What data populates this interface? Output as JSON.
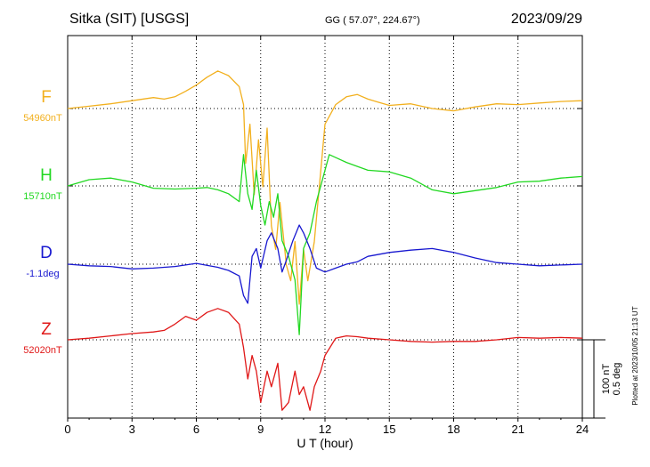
{
  "header": {
    "station": "Sitka (SIT)  [USGS]",
    "coords": "GG ( 57.07°, 224.67°)",
    "date": "2023/09/29"
  },
  "plotted_note": "Plotted at 2023/10/05 21:13 UT",
  "scale_labels": [
    "100 nT",
    "0.5 deg"
  ],
  "colors": {
    "F": "#f2b01e",
    "H": "#22d822",
    "D": "#1818d0",
    "Z": "#e01818",
    "axis": "#000000",
    "grid": "#000000"
  },
  "chart_data": {
    "type": "line",
    "title": "Sitka (SIT)  [USGS]",
    "xlabel": "U T (hour)",
    "xlim": [
      0,
      24
    ],
    "x_ticks": [
      "0",
      "3",
      "6",
      "9",
      "12",
      "15",
      "18",
      "21",
      "24"
    ],
    "grid": true,
    "scale_bar": {
      "nT": 100,
      "deg": 0.5
    },
    "series": [
      {
        "name": "F",
        "baseline_label": "54960nT",
        "color_key": "F",
        "units": "nT offset from baseline",
        "points": [
          [
            0,
            0
          ],
          [
            1,
            3
          ],
          [
            2,
            6
          ],
          [
            3,
            10
          ],
          [
            4,
            14
          ],
          [
            4.5,
            12
          ],
          [
            5,
            15
          ],
          [
            5.5,
            22
          ],
          [
            6,
            30
          ],
          [
            6.5,
            40
          ],
          [
            7,
            48
          ],
          [
            7.5,
            42
          ],
          [
            8,
            28
          ],
          [
            8.2,
            5
          ],
          [
            8.3,
            -70
          ],
          [
            8.5,
            -20
          ],
          [
            8.7,
            -110
          ],
          [
            8.9,
            -40
          ],
          [
            9.1,
            -100
          ],
          [
            9.3,
            -25
          ],
          [
            9.5,
            -150
          ],
          [
            9.7,
            -180
          ],
          [
            9.9,
            -120
          ],
          [
            10.2,
            -200
          ],
          [
            10.4,
            -220
          ],
          [
            10.6,
            -170
          ],
          [
            10.8,
            -250
          ],
          [
            11,
            -180
          ],
          [
            11.2,
            -220
          ],
          [
            11.5,
            -170
          ],
          [
            11.8,
            -80
          ],
          [
            12,
            -20
          ],
          [
            12.5,
            5
          ],
          [
            13,
            15
          ],
          [
            13.5,
            18
          ],
          [
            14,
            12
          ],
          [
            14.5,
            8
          ],
          [
            15,
            4
          ],
          [
            16,
            6
          ],
          [
            17,
            0
          ],
          [
            18,
            -3
          ],
          [
            19,
            2
          ],
          [
            20,
            6
          ],
          [
            21,
            5
          ],
          [
            22,
            7
          ],
          [
            23,
            9
          ],
          [
            24,
            10
          ]
        ]
      },
      {
        "name": "H",
        "baseline_label": "15710nT",
        "color_key": "H",
        "units": "nT offset from baseline",
        "points": [
          [
            0,
            0
          ],
          [
            1,
            8
          ],
          [
            2,
            10
          ],
          [
            3,
            5
          ],
          [
            4,
            -3
          ],
          [
            5,
            -4
          ],
          [
            6,
            -3
          ],
          [
            6.5,
            -2
          ],
          [
            7,
            -5
          ],
          [
            7.5,
            -10
          ],
          [
            8,
            -20
          ],
          [
            8.2,
            40
          ],
          [
            8.4,
            -10
          ],
          [
            8.6,
            -30
          ],
          [
            8.8,
            20
          ],
          [
            9,
            -25
          ],
          [
            9.2,
            -50
          ],
          [
            9.4,
            -20
          ],
          [
            9.6,
            -40
          ],
          [
            9.8,
            -10
          ],
          [
            10,
            -70
          ],
          [
            10.3,
            -90
          ],
          [
            10.6,
            -120
          ],
          [
            10.8,
            -190
          ],
          [
            11,
            -80
          ],
          [
            11.3,
            -60
          ],
          [
            11.6,
            -20
          ],
          [
            11.9,
            10
          ],
          [
            12.2,
            40
          ],
          [
            12.6,
            35
          ],
          [
            13,
            30
          ],
          [
            13.5,
            25
          ],
          [
            14,
            20
          ],
          [
            15,
            18
          ],
          [
            16,
            10
          ],
          [
            17,
            -5
          ],
          [
            18,
            -10
          ],
          [
            19,
            -6
          ],
          [
            20,
            -2
          ],
          [
            21,
            5
          ],
          [
            22,
            6
          ],
          [
            23,
            10
          ],
          [
            24,
            12
          ]
        ]
      },
      {
        "name": "D",
        "baseline_label": "-1.1deg",
        "color_key": "D",
        "units": "nT-equivalent offset from baseline",
        "points": [
          [
            0,
            0
          ],
          [
            1,
            -2
          ],
          [
            2,
            -3
          ],
          [
            3,
            -6
          ],
          [
            4,
            -5
          ],
          [
            5,
            -3
          ],
          [
            6,
            1
          ],
          [
            7,
            -4
          ],
          [
            7.5,
            -8
          ],
          [
            8,
            -15
          ],
          [
            8.2,
            -40
          ],
          [
            8.4,
            -50
          ],
          [
            8.6,
            10
          ],
          [
            8.8,
            20
          ],
          [
            9,
            -5
          ],
          [
            9.3,
            30
          ],
          [
            9.5,
            40
          ],
          [
            9.8,
            20
          ],
          [
            10,
            -10
          ],
          [
            10.2,
            5
          ],
          [
            10.5,
            30
          ],
          [
            10.8,
            50
          ],
          [
            11,
            40
          ],
          [
            11.3,
            20
          ],
          [
            11.6,
            -5
          ],
          [
            12,
            -10
          ],
          [
            12.5,
            -5
          ],
          [
            13,
            0
          ],
          [
            13.5,
            3
          ],
          [
            14,
            10
          ],
          [
            15,
            15
          ],
          [
            16,
            18
          ],
          [
            17,
            20
          ],
          [
            18,
            15
          ],
          [
            19,
            8
          ],
          [
            20,
            2
          ],
          [
            21,
            0
          ],
          [
            22,
            -2
          ],
          [
            23,
            -1
          ],
          [
            24,
            0
          ]
        ]
      },
      {
        "name": "Z",
        "baseline_label": "52020nT",
        "color_key": "Z",
        "units": "nT offset from baseline",
        "points": [
          [
            0,
            0
          ],
          [
            1,
            2
          ],
          [
            2,
            5
          ],
          [
            3,
            8
          ],
          [
            4,
            10
          ],
          [
            4.5,
            12
          ],
          [
            5,
            20
          ],
          [
            5.5,
            30
          ],
          [
            6,
            25
          ],
          [
            6.5,
            35
          ],
          [
            7,
            40
          ],
          [
            7.5,
            35
          ],
          [
            8,
            20
          ],
          [
            8.2,
            -10
          ],
          [
            8.4,
            -50
          ],
          [
            8.6,
            -20
          ],
          [
            8.8,
            -40
          ],
          [
            9,
            -80
          ],
          [
            9.3,
            -40
          ],
          [
            9.5,
            -60
          ],
          [
            9.8,
            -30
          ],
          [
            10,
            -90
          ],
          [
            10.3,
            -80
          ],
          [
            10.6,
            -40
          ],
          [
            10.8,
            -70
          ],
          [
            11,
            -60
          ],
          [
            11.3,
            -90
          ],
          [
            11.5,
            -60
          ],
          [
            11.8,
            -40
          ],
          [
            12,
            -20
          ],
          [
            12.5,
            2
          ],
          [
            13,
            5
          ],
          [
            13.5,
            4
          ],
          [
            14,
            2
          ],
          [
            15,
            0
          ],
          [
            16,
            -2
          ],
          [
            17,
            -3
          ],
          [
            18,
            -2
          ],
          [
            19,
            -2
          ],
          [
            20,
            0
          ],
          [
            21,
            3
          ],
          [
            22,
            2
          ],
          [
            23,
            3
          ],
          [
            24,
            2
          ]
        ]
      }
    ]
  }
}
